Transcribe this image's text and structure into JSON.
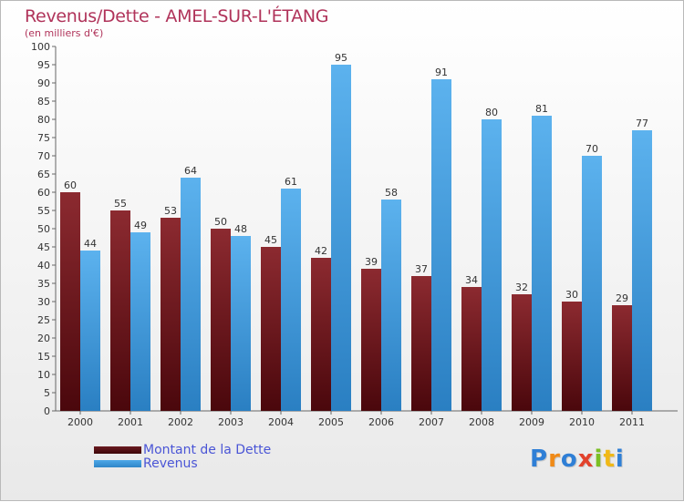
{
  "header": {
    "title": "Revenus/Dette - AMEL-SUR-L'ÉTANG",
    "subtitle": "(en milliers d'€)"
  },
  "legend": {
    "dette_label": "Montant de la Dette",
    "revenus_label": "Revenus"
  },
  "logo": {
    "text": "Proxiti",
    "letters": [
      {
        "ch": "P",
        "color": "#2f7fd6"
      },
      {
        "ch": "r",
        "color": "#f08a17"
      },
      {
        "ch": "o",
        "color": "#2f7fd6"
      },
      {
        "ch": "x",
        "color": "#e2422c"
      },
      {
        "ch": "i",
        "color": "#7bbf24"
      },
      {
        "ch": "t",
        "color": "#f0b817"
      },
      {
        "ch": "i",
        "color": "#2f7fd6"
      }
    ]
  },
  "colors": {
    "dette": "#6b1a20",
    "revenus": "#4ea8e8",
    "title": "#b0335a",
    "legend_text": "#4a55d6"
  },
  "chart_data": {
    "type": "bar",
    "title": "Revenus/Dette - AMEL-SUR-L'ÉTANG",
    "subtitle": "(en milliers d'€)",
    "categories": [
      "2000",
      "2001",
      "2002",
      "2003",
      "2004",
      "2005",
      "2006",
      "2007",
      "2008",
      "2009",
      "2010",
      "2011"
    ],
    "series": [
      {
        "name": "Montant de la Dette",
        "values": [
          60,
          55,
          53,
          50,
          45,
          42,
          39,
          37,
          34,
          32,
          30,
          29
        ]
      },
      {
        "name": "Revenus",
        "values": [
          44,
          49,
          64,
          48,
          61,
          95,
          58,
          91,
          80,
          81,
          70,
          77
        ]
      }
    ],
    "ylim": [
      0,
      100
    ],
    "ytick_step": 5,
    "grid": false,
    "legend_position": "bottom-left"
  }
}
